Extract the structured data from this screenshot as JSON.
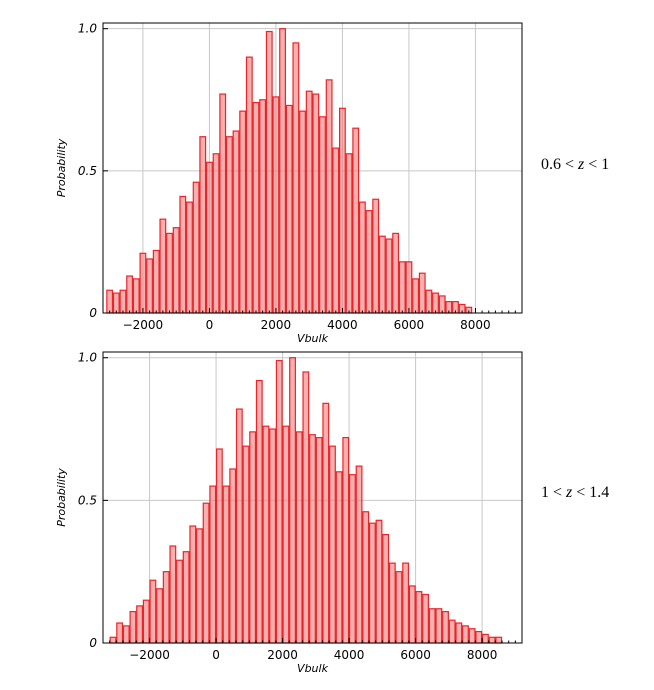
{
  "chart_data": [
    {
      "type": "bar",
      "panel_label": {
        "a": "0.6 < ",
        "var": "z",
        "b": " < 1"
      },
      "xlabel": "Vbulk",
      "ylabel": "Probability",
      "xlim": [
        -3200,
        9400
      ],
      "ylim": [
        0,
        1.02
      ],
      "xticks": [
        -2000,
        0,
        2000,
        4000,
        6000,
        8000
      ],
      "xtick_labels": [
        "−2000",
        "0",
        "2000",
        "4000",
        "6000",
        "8000"
      ],
      "yticks": [
        0,
        0.5,
        1.0
      ],
      "ytick_labels": [
        "0",
        "0.5",
        "1.0"
      ],
      "grid": true,
      "bin_start": -3100,
      "bin_width": 200,
      "values": [
        0.08,
        0.07,
        0.08,
        0.13,
        0.12,
        0.21,
        0.19,
        0.22,
        0.33,
        0.28,
        0.3,
        0.41,
        0.39,
        0.46,
        0.62,
        0.53,
        0.56,
        0.77,
        0.62,
        0.64,
        0.71,
        0.9,
        0.74,
        0.75,
        0.99,
        0.76,
        1.0,
        0.73,
        0.95,
        0.71,
        0.78,
        0.77,
        0.69,
        0.82,
        0.58,
        0.72,
        0.56,
        0.65,
        0.39,
        0.36,
        0.4,
        0.27,
        0.26,
        0.28,
        0.18,
        0.18,
        0.12,
        0.14,
        0.08,
        0.07,
        0.06,
        0.04,
        0.04,
        0.03,
        0.02
      ],
      "bar_color": "#f47a7a",
      "edge_color": "#e8262a"
    },
    {
      "type": "bar",
      "panel_label": {
        "a": "1 < ",
        "var": "z",
        "b": " < 1.4"
      },
      "xlabel": "Vbulk",
      "ylabel": "Probability",
      "xlim": [
        -3400,
        9200
      ],
      "ylim": [
        0,
        1.02
      ],
      "xticks": [
        -2000,
        0,
        2000,
        4000,
        6000,
        8000
      ],
      "xtick_labels": [
        "−2000",
        "0",
        "2000",
        "4000",
        "6000",
        "8000"
      ],
      "yticks": [
        0,
        0.5,
        1.0
      ],
      "ytick_labels": [
        "0",
        "0.5",
        "1.0"
      ],
      "grid": true,
      "bin_start": -3200,
      "bin_width": 200,
      "values": [
        0.02,
        0.07,
        0.06,
        0.11,
        0.13,
        0.15,
        0.22,
        0.19,
        0.25,
        0.34,
        0.29,
        0.32,
        0.41,
        0.4,
        0.49,
        0.55,
        0.68,
        0.55,
        0.61,
        0.82,
        0.69,
        0.74,
        0.92,
        0.76,
        0.75,
        0.99,
        0.76,
        1.0,
        0.74,
        0.95,
        0.73,
        0.72,
        0.84,
        0.69,
        0.6,
        0.72,
        0.59,
        0.62,
        0.46,
        0.42,
        0.43,
        0.38,
        0.28,
        0.25,
        0.28,
        0.2,
        0.18,
        0.17,
        0.12,
        0.12,
        0.11,
        0.08,
        0.07,
        0.06,
        0.05,
        0.04,
        0.03,
        0.02,
        0.02
      ],
      "bar_color": "#f47a7a",
      "edge_color": "#e8262a"
    }
  ]
}
